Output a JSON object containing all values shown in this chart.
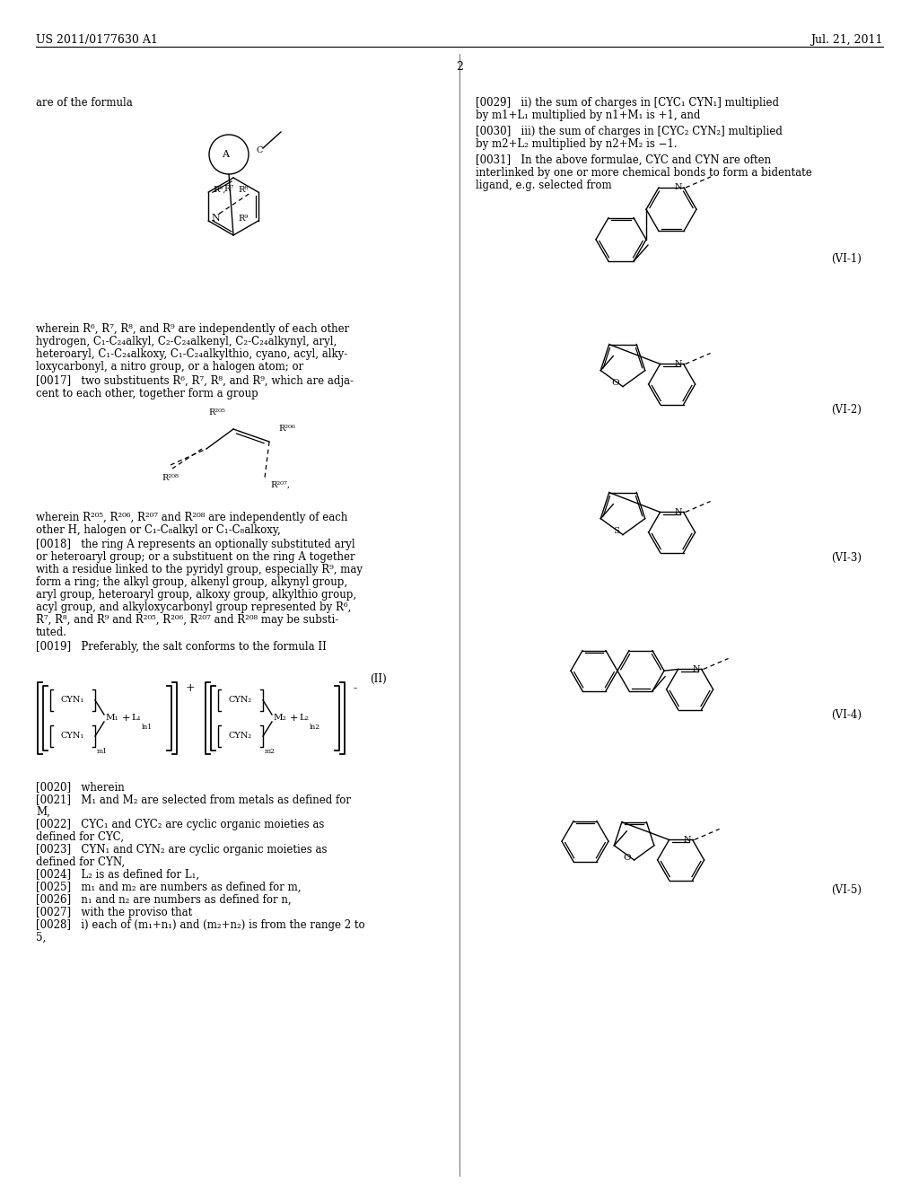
{
  "bg_color": "#ffffff",
  "header_left": "US 2011/0177630 A1",
  "header_right": "Jul. 21, 2011",
  "page_number": "2",
  "figsize": [
    10.24,
    13.2
  ],
  "dpi": 100
}
